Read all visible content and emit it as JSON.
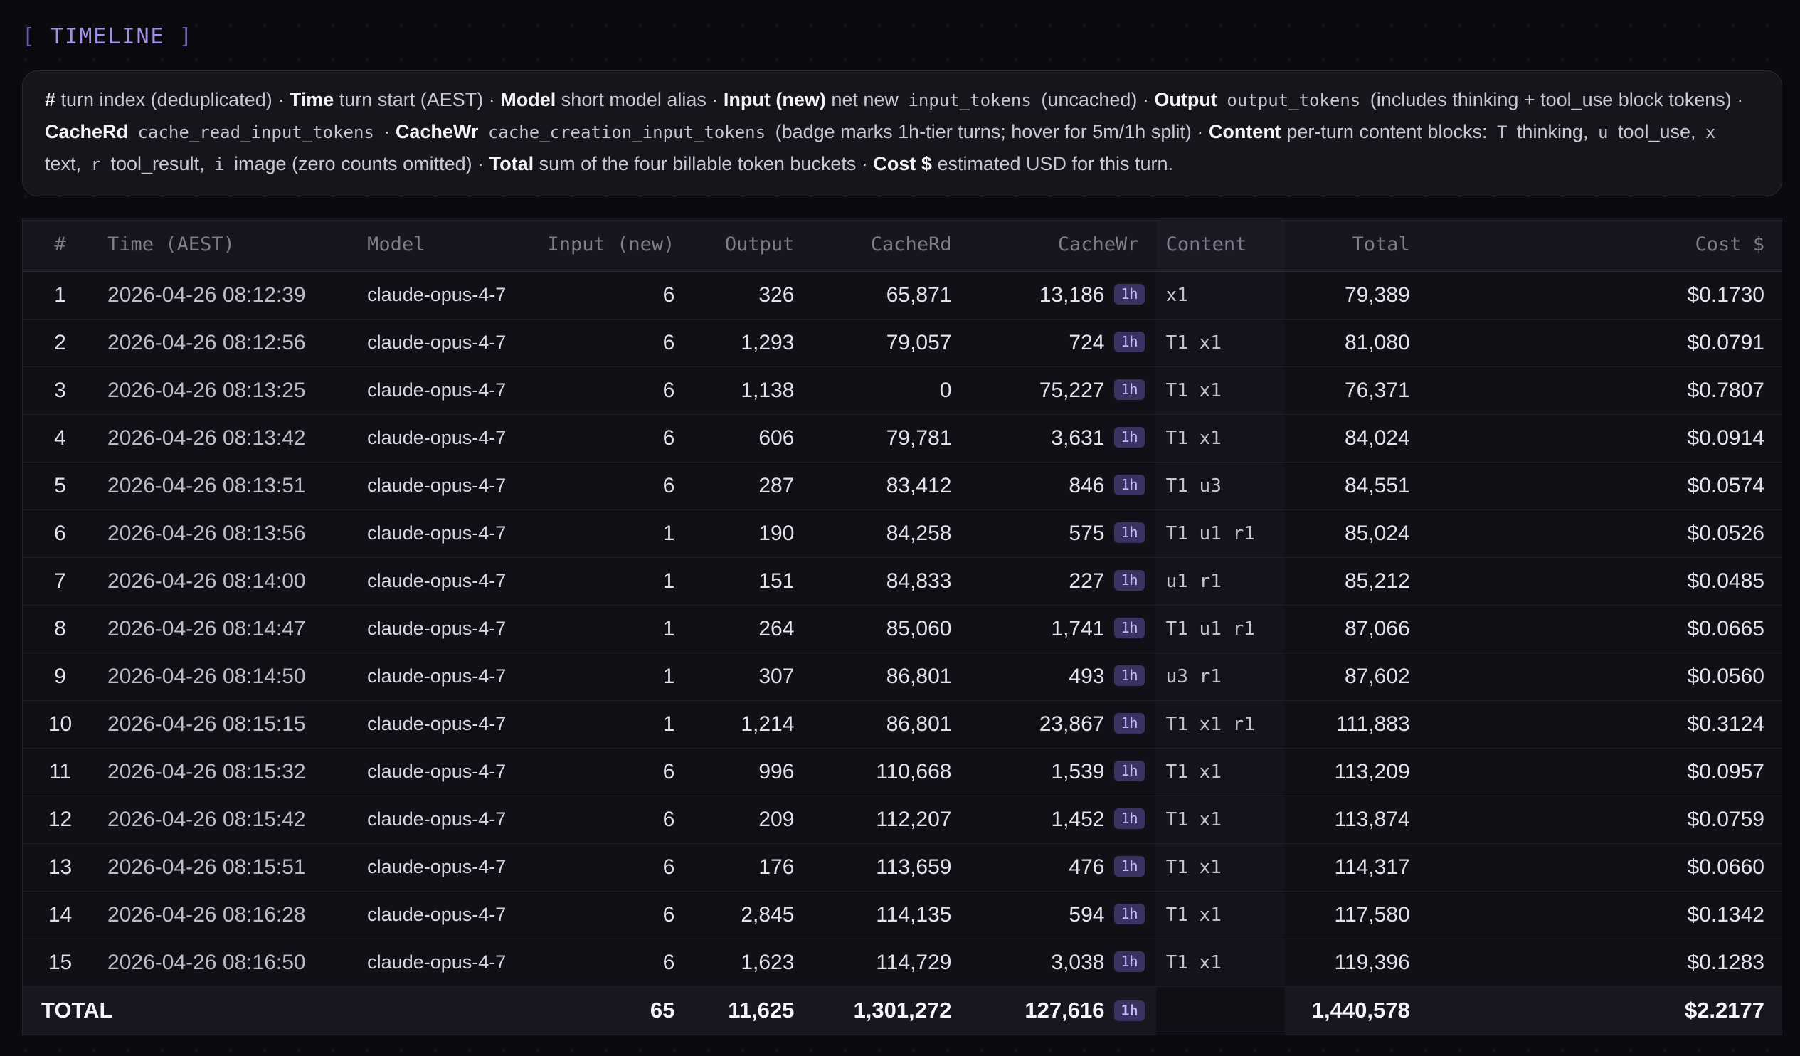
{
  "section": {
    "bracket_open": "[",
    "title": "TIMELINE",
    "bracket_close": "]"
  },
  "legend": {
    "l1": "#",
    "t1": " turn index (deduplicated) · ",
    "l2": "Time",
    "t2": " turn start (AEST) · ",
    "l3": "Model",
    "t3": " short model alias · ",
    "l4": "Input (new)",
    "t4": " net new ",
    "c4": "input_tokens",
    "t4b": " (uncached) · ",
    "l5": "Output",
    "c5": "output_tokens",
    "t5": " (includes thinking + tool_use block tokens) · ",
    "l6": "CacheRd",
    "c6": "cache_read_input_tokens",
    "t6": " · ",
    "l7": "CacheWr",
    "c7": "cache_creation_input_tokens",
    "t7": " (badge marks 1h-tier turns; hover for 5m/1h split) · ",
    "l8": "Content",
    "t8": " per-turn content blocks: ",
    "cT": "T",
    "tT": " thinking, ",
    "cu": "u",
    "tu": " tool_use, ",
    "cx": "x",
    "tx": " text, ",
    "cr": "r",
    "tr": " tool_result, ",
    "ci": "i",
    "ti": " image (zero counts omitted) · ",
    "l9": "Total",
    "t9": " sum of the four billable token buckets · ",
    "l10": "Cost $",
    "t10": " estimated USD for this turn."
  },
  "columns": {
    "idx": "#",
    "time": "Time (AEST)",
    "model": "Model",
    "input": "Input (new)",
    "output": "Output",
    "cache_rd": "CacheRd",
    "cache_wr": "CacheWr",
    "content": "Content",
    "total": "Total",
    "cost": "Cost $"
  },
  "rows": [
    {
      "idx": "1",
      "time": "2026-04-26 08:12:39",
      "model": "claude-opus-4-7",
      "input": "6",
      "output": "326",
      "cache_rd": "65,871",
      "cache_wr": "13,186",
      "badge": "1h",
      "content": "x1",
      "total": "79,389",
      "cost": "$0.1730"
    },
    {
      "idx": "2",
      "time": "2026-04-26 08:12:56",
      "model": "claude-opus-4-7",
      "input": "6",
      "output": "1,293",
      "cache_rd": "79,057",
      "cache_wr": "724",
      "badge": "1h",
      "content": "T1 x1",
      "total": "81,080",
      "cost": "$0.0791"
    },
    {
      "idx": "3",
      "time": "2026-04-26 08:13:25",
      "model": "claude-opus-4-7",
      "input": "6",
      "output": "1,138",
      "cache_rd": "0",
      "cache_wr": "75,227",
      "badge": "1h",
      "content": "T1 x1",
      "total": "76,371",
      "cost": "$0.7807"
    },
    {
      "idx": "4",
      "time": "2026-04-26 08:13:42",
      "model": "claude-opus-4-7",
      "input": "6",
      "output": "606",
      "cache_rd": "79,781",
      "cache_wr": "3,631",
      "badge": "1h",
      "content": "T1 x1",
      "total": "84,024",
      "cost": "$0.0914"
    },
    {
      "idx": "5",
      "time": "2026-04-26 08:13:51",
      "model": "claude-opus-4-7",
      "input": "6",
      "output": "287",
      "cache_rd": "83,412",
      "cache_wr": "846",
      "badge": "1h",
      "content": "T1 u3",
      "total": "84,551",
      "cost": "$0.0574"
    },
    {
      "idx": "6",
      "time": "2026-04-26 08:13:56",
      "model": "claude-opus-4-7",
      "input": "1",
      "output": "190",
      "cache_rd": "84,258",
      "cache_wr": "575",
      "badge": "1h",
      "content": "T1 u1 r1",
      "total": "85,024",
      "cost": "$0.0526"
    },
    {
      "idx": "7",
      "time": "2026-04-26 08:14:00",
      "model": "claude-opus-4-7",
      "input": "1",
      "output": "151",
      "cache_rd": "84,833",
      "cache_wr": "227",
      "badge": "1h",
      "content": "u1 r1",
      "total": "85,212",
      "cost": "$0.0485"
    },
    {
      "idx": "8",
      "time": "2026-04-26 08:14:47",
      "model": "claude-opus-4-7",
      "input": "1",
      "output": "264",
      "cache_rd": "85,060",
      "cache_wr": "1,741",
      "badge": "1h",
      "content": "T1 u1 r1",
      "total": "87,066",
      "cost": "$0.0665"
    },
    {
      "idx": "9",
      "time": "2026-04-26 08:14:50",
      "model": "claude-opus-4-7",
      "input": "1",
      "output": "307",
      "cache_rd": "86,801",
      "cache_wr": "493",
      "badge": "1h",
      "content": "u3 r1",
      "total": "87,602",
      "cost": "$0.0560"
    },
    {
      "idx": "10",
      "time": "2026-04-26 08:15:15",
      "model": "claude-opus-4-7",
      "input": "1",
      "output": "1,214",
      "cache_rd": "86,801",
      "cache_wr": "23,867",
      "badge": "1h",
      "content": "T1 x1 r1",
      "total": "111,883",
      "cost": "$0.3124"
    },
    {
      "idx": "11",
      "time": "2026-04-26 08:15:32",
      "model": "claude-opus-4-7",
      "input": "6",
      "output": "996",
      "cache_rd": "110,668",
      "cache_wr": "1,539",
      "badge": "1h",
      "content": "T1 x1",
      "total": "113,209",
      "cost": "$0.0957"
    },
    {
      "idx": "12",
      "time": "2026-04-26 08:15:42",
      "model": "claude-opus-4-7",
      "input": "6",
      "output": "209",
      "cache_rd": "112,207",
      "cache_wr": "1,452",
      "badge": "1h",
      "content": "T1 x1",
      "total": "113,874",
      "cost": "$0.0759"
    },
    {
      "idx": "13",
      "time": "2026-04-26 08:15:51",
      "model": "claude-opus-4-7",
      "input": "6",
      "output": "176",
      "cache_rd": "113,659",
      "cache_wr": "476",
      "badge": "1h",
      "content": "T1 x1",
      "total": "114,317",
      "cost": "$0.0660"
    },
    {
      "idx": "14",
      "time": "2026-04-26 08:16:28",
      "model": "claude-opus-4-7",
      "input": "6",
      "output": "2,845",
      "cache_rd": "114,135",
      "cache_wr": "594",
      "badge": "1h",
      "content": "T1 x1",
      "total": "117,580",
      "cost": "$0.1342"
    },
    {
      "idx": "15",
      "time": "2026-04-26 08:16:50",
      "model": "claude-opus-4-7",
      "input": "6",
      "output": "1,623",
      "cache_rd": "114,729",
      "cache_wr": "3,038",
      "badge": "1h",
      "content": "T1 x1",
      "total": "119,396",
      "cost": "$0.1283"
    }
  ],
  "totals": {
    "label": "TOTAL",
    "input": "65",
    "output": "11,625",
    "cache_rd": "1,301,272",
    "cache_wr": "127,616",
    "badge": "1h",
    "total": "1,440,578",
    "cost": "$2.2177"
  },
  "colors": {
    "accent": "#a691e8",
    "badge_bg": "#3a3260",
    "badge_text": "#c6b8ff"
  }
}
